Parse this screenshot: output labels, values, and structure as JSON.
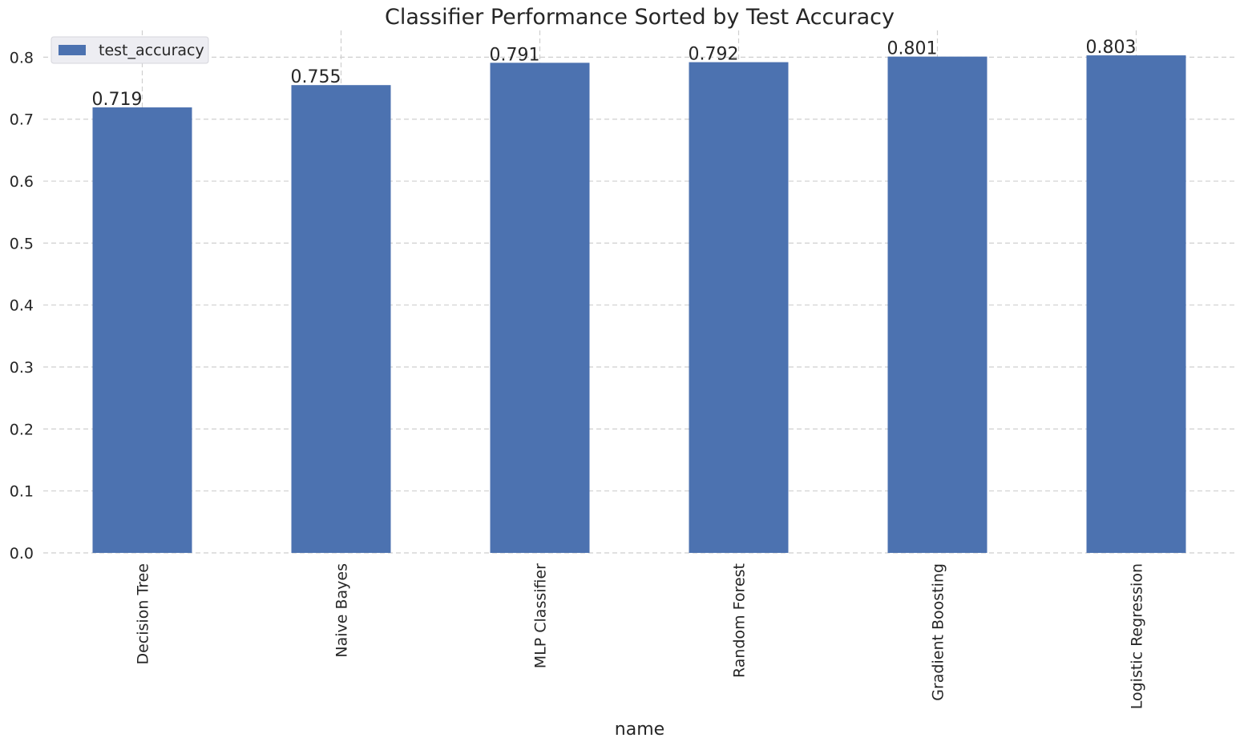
{
  "chart_data": {
    "type": "bar",
    "title": "Classifier Performance Sorted by Test Accuracy",
    "xlabel": "name",
    "ylabel": "",
    "categories": [
      "Decision Tree",
      "Naive Bayes",
      "MLP Classifier",
      "Random Forest",
      "Gradient Boosting",
      "Logistic Regression"
    ],
    "series": [
      {
        "name": "test_accuracy",
        "values": [
          0.719,
          0.755,
          0.791,
          0.792,
          0.801,
          0.803
        ],
        "color": "#4c72b0"
      }
    ],
    "data_labels": [
      "0.719",
      "0.755",
      "0.791",
      "0.792",
      "0.801",
      "0.803"
    ],
    "y_ticks": [
      "0.0",
      "0.1",
      "0.2",
      "0.3",
      "0.4",
      "0.5",
      "0.6",
      "0.7",
      "0.8"
    ],
    "y_tick_values": [
      0,
      0.1,
      0.2,
      0.3,
      0.4,
      0.5,
      0.6,
      0.7,
      0.8
    ],
    "ylim": [
      0,
      0.8432
    ],
    "grid": true,
    "legend_position": "top-left"
  }
}
